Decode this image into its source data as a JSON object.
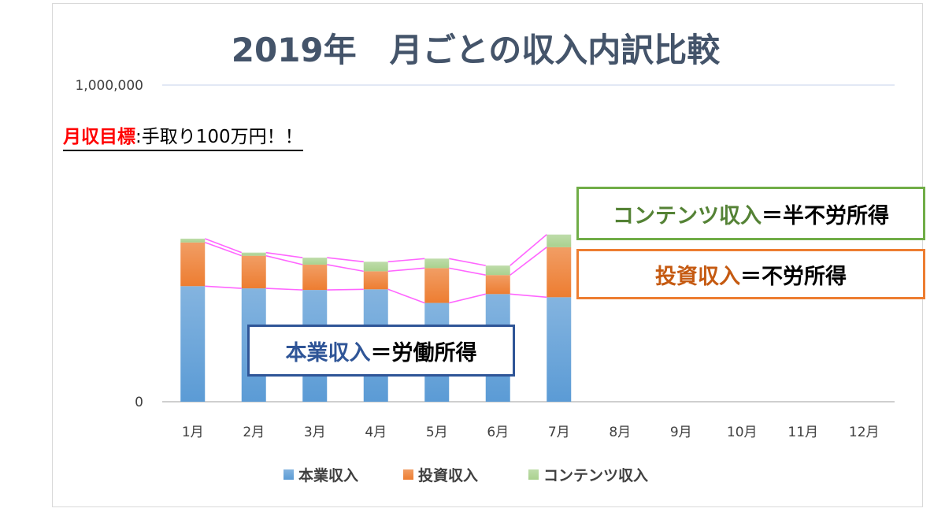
{
  "chart_data": {
    "type": "bar",
    "stacked": true,
    "title": "2019年　月ごとの収入内訳比較",
    "categories": [
      "1月",
      "2月",
      "3月",
      "4月",
      "5月",
      "6月",
      "7月",
      "8月",
      "9月",
      "10月",
      "11月",
      "12月"
    ],
    "series": [
      {
        "name": "本業収入",
        "color": "#5b9bd5",
        "values": [
          365000,
          358000,
          353000,
          355000,
          312000,
          340000,
          330000,
          null,
          null,
          null,
          null,
          null
        ]
      },
      {
        "name": "投資収入",
        "color": "#ed7d31",
        "values": [
          138000,
          103000,
          80000,
          57000,
          110000,
          60000,
          158000,
          null,
          null,
          null,
          null,
          null
        ]
      },
      {
        "name": "コンテンツ収入",
        "color": "#a9d18e",
        "values": [
          12000,
          10000,
          22000,
          30000,
          30000,
          30000,
          40000,
          null,
          null,
          null,
          null,
          null
        ]
      }
    ],
    "ylim": [
      0,
      1000000
    ],
    "yticks": [
      "0",
      "1,000,000"
    ],
    "grid": true,
    "legend_position": "bottom",
    "series_lines_color": "#ff66ff"
  },
  "annotations": {
    "goal_label": "月収目標",
    "goal_text": ":手取り100万円！！",
    "content_label": "コンテンツ収入",
    "content_text": "＝半不労所得",
    "invest_label": "投資収入",
    "invest_text": "＝不労所得",
    "main_label": "本業収入",
    "main_text": "＝労働所得"
  }
}
